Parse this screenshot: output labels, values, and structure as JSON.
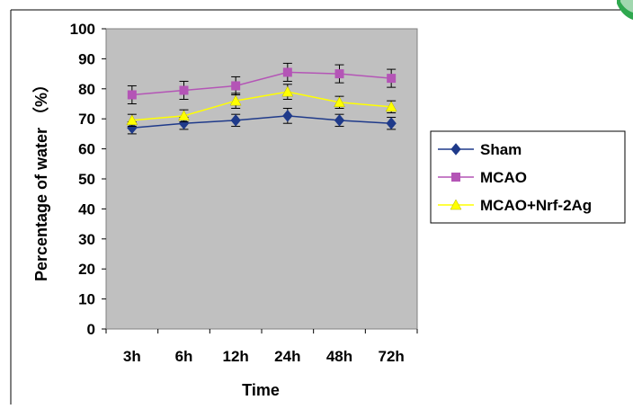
{
  "chart_data": {
    "type": "line",
    "title": "",
    "xlabel": "Time",
    "ylabel": "Percentage of water （%）",
    "categories": [
      "3h",
      "6h",
      "12h",
      "24h",
      "48h",
      "72h"
    ],
    "ylim": [
      0,
      100
    ],
    "yticks": [
      0,
      10,
      20,
      30,
      40,
      50,
      60,
      70,
      80,
      90,
      100
    ],
    "grid": false,
    "legend_placement": "right",
    "plot_background": "#c0c0c0",
    "series": [
      {
        "name": "Sham",
        "color": "#1f3a8a",
        "marker": "diamond",
        "values": [
          67,
          68.5,
          69.5,
          71,
          69.5,
          68.5
        ],
        "errors": [
          2,
          2,
          2,
          2.5,
          2,
          2
        ]
      },
      {
        "name": "MCAO",
        "color": "#b455b6",
        "marker": "square",
        "values": [
          78,
          79.5,
          81,
          85.5,
          85,
          83.5
        ],
        "errors": [
          3,
          3,
          3,
          3,
          3,
          3
        ]
      },
      {
        "name": "MCAO+Nrf-2Ag",
        "color": "#ffff00",
        "marker": "triangle",
        "values": [
          69.5,
          71,
          76,
          79,
          75.5,
          74
        ],
        "errors": [
          2,
          2,
          2.5,
          2.5,
          2,
          2
        ]
      }
    ]
  }
}
